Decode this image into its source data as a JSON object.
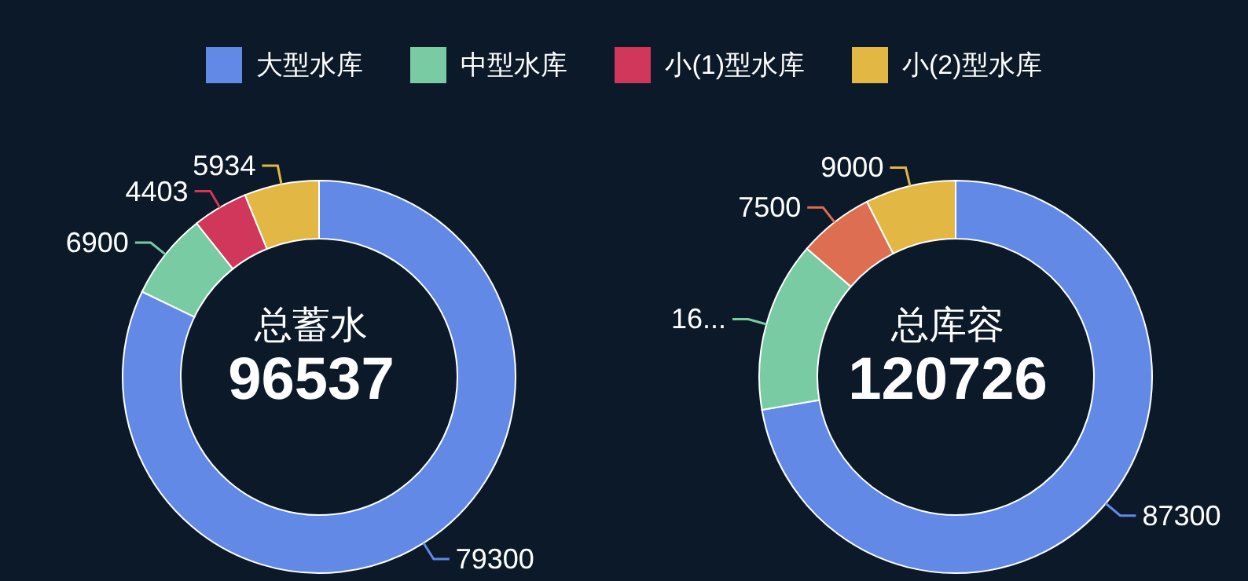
{
  "chart_data": [
    {
      "type": "donut",
      "categories": [
        "大型水库",
        "中型水库",
        "小(1)型水库",
        "小(2)型水库"
      ],
      "values": [
        79300,
        6900,
        4403,
        5934
      ],
      "colors": [
        "#6389e6",
        "#78cba2",
        "#d0375a",
        "#e3b744"
      ],
      "data_labels": true,
      "legend": "top",
      "annotations": [
        "总蓄水",
        "96537"
      ]
    },
    {
      "type": "donut",
      "categories": [
        null,
        null,
        null,
        null
      ],
      "values": [
        87300,
        16926,
        7500,
        9000
      ],
      "colors": [
        "#6389e6",
        "#78cba2",
        "#de6e52",
        "#e3b744"
      ],
      "value_labels": [
        "87300",
        "16...",
        "7500",
        "9000"
      ],
      "legend": false,
      "annotations": [
        "总库容",
        "120726"
      ]
    }
  ]
}
